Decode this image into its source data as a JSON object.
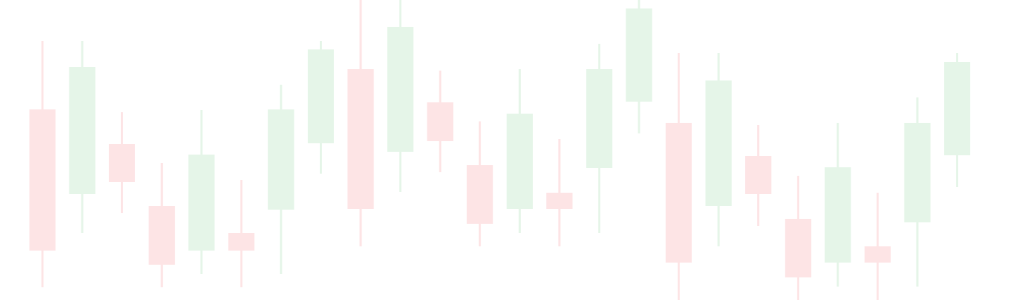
{
  "chart_data": {
    "type": "candlestick",
    "title": "",
    "xlabel": "",
    "ylabel": "",
    "ylim": [
      0,
      425
    ],
    "axes_visible": false,
    "grid": false,
    "legend": "none",
    "colors": {
      "up": "#e5f5e8",
      "down": "#fde4e5"
    },
    "candles": [
      {
        "x": 1,
        "open": 270,
        "close": 70,
        "high": 367,
        "low": 18,
        "direction": "down"
      },
      {
        "x": 2,
        "open": 150,
        "close": 330,
        "high": 367,
        "low": 95,
        "direction": "up"
      },
      {
        "x": 3,
        "open": 221,
        "close": 167,
        "high": 266,
        "low": 123,
        "direction": "down"
      },
      {
        "x": 4,
        "open": 133,
        "close": 50,
        "high": 194,
        "low": 18,
        "direction": "down"
      },
      {
        "x": 5,
        "open": 70,
        "close": 206,
        "high": 269,
        "low": 37,
        "direction": "up"
      },
      {
        "x": 6,
        "open": 95,
        "close": 70,
        "high": 170,
        "low": 18,
        "direction": "down"
      },
      {
        "x": 7,
        "open": 128,
        "close": 270,
        "high": 305,
        "low": 37,
        "direction": "up"
      },
      {
        "x": 8,
        "open": 222,
        "close": 355,
        "high": 367,
        "low": 179,
        "direction": "up"
      },
      {
        "x": 9,
        "open": 327,
        "close": 129,
        "high": 425,
        "low": 76,
        "direction": "down"
      },
      {
        "x": 10,
        "open": 210,
        "close": 387,
        "high": 425,
        "low": 153,
        "direction": "up"
      },
      {
        "x": 11,
        "open": 280,
        "close": 225,
        "high": 325,
        "low": 181,
        "direction": "down"
      },
      {
        "x": 12,
        "open": 191,
        "close": 108,
        "high": 253,
        "low": 76,
        "direction": "down"
      },
      {
        "x": 13,
        "open": 129,
        "close": 264,
        "high": 327,
        "low": 95,
        "direction": "up"
      },
      {
        "x": 14,
        "open": 152,
        "close": 129,
        "high": 228,
        "low": 76,
        "direction": "down"
      },
      {
        "x": 15,
        "open": 187,
        "close": 327,
        "high": 363,
        "low": 95,
        "direction": "up"
      },
      {
        "x": 16,
        "open": 281,
        "close": 413,
        "high": 425,
        "low": 236,
        "direction": "up"
      },
      {
        "x": 17,
        "open": 251,
        "close": 53,
        "high": 350,
        "low": 0,
        "direction": "down"
      },
      {
        "x": 18,
        "open": 133,
        "close": 311,
        "high": 350,
        "low": 76,
        "direction": "up"
      },
      {
        "x": 19,
        "open": 204,
        "close": 150,
        "high": 248,
        "low": 105,
        "direction": "down"
      },
      {
        "x": 20,
        "open": 115,
        "close": 32,
        "high": 176,
        "low": 0,
        "direction": "down"
      },
      {
        "x": 21,
        "open": 53,
        "close": 188,
        "high": 251,
        "low": 19,
        "direction": "up"
      },
      {
        "x": 22,
        "open": 76,
        "close": 53,
        "high": 152,
        "low": 0,
        "direction": "down"
      },
      {
        "x": 23,
        "open": 110,
        "close": 251,
        "high": 287,
        "low": 19,
        "direction": "up"
      },
      {
        "x": 24,
        "open": 205,
        "close": 337,
        "high": 350,
        "low": 160,
        "direction": "up"
      }
    ]
  }
}
